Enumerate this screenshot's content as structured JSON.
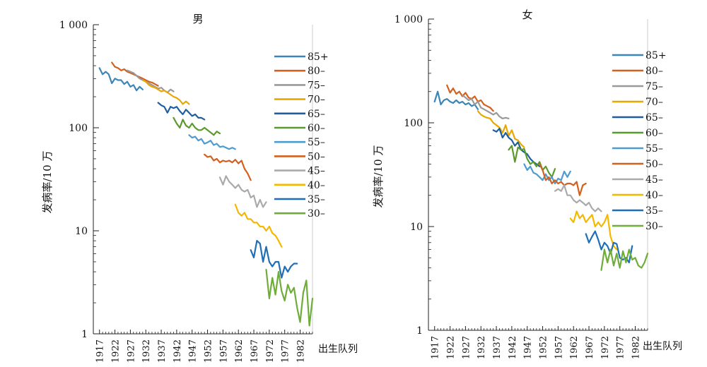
{
  "chart_data": [
    {
      "type": "line",
      "title": "男",
      "ylabel": "发病率/10 万",
      "xlabel": "出生队列",
      "yscale": "log",
      "ylim": [
        1,
        1000
      ],
      "xlim": [
        1915,
        1986
      ],
      "x_ticks": [
        "1917",
        "1922",
        "1927",
        "1932",
        "1937",
        "1942",
        "1947",
        "1952",
        "1957",
        "1962",
        "1967",
        "1972",
        "1977",
        "1982"
      ],
      "y_ticks": [
        {
          "value": 1,
          "label": "1"
        },
        {
          "value": 10,
          "label": "10"
        },
        {
          "value": 100,
          "label": "100"
        },
        {
          "value": 1000,
          "label": "1 000"
        }
      ],
      "legend_position": "right",
      "series": [
        {
          "name": "85+",
          "color": "#3b86b8",
          "x": [
            1917,
            1918,
            1919,
            1920,
            1921,
            1922,
            1923,
            1924,
            1925,
            1926,
            1927,
            1928,
            1929,
            1930,
            1931
          ],
          "values": [
            380,
            330,
            350,
            330,
            270,
            300,
            290,
            290,
            265,
            280,
            250,
            260,
            230,
            250,
            235
          ]
        },
        {
          "name": "80–",
          "color": "#d2611f",
          "x": [
            1921,
            1922,
            1923,
            1924,
            1925,
            1926,
            1927,
            1928,
            1929,
            1930,
            1931,
            1932,
            1933,
            1934,
            1935,
            1936
          ],
          "values": [
            430,
            390,
            380,
            360,
            370,
            350,
            340,
            330,
            320,
            310,
            300,
            290,
            280,
            275,
            265,
            255
          ]
        },
        {
          "name": "75–",
          "color": "#999999",
          "x": [
            1926,
            1927,
            1928,
            1929,
            1930,
            1931,
            1932,
            1933,
            1934,
            1935,
            1936,
            1937,
            1938,
            1939,
            1940,
            1941
          ],
          "values": [
            360,
            350,
            340,
            320,
            300,
            290,
            280,
            270,
            260,
            250,
            240,
            245,
            230,
            220,
            235,
            225
          ]
        },
        {
          "name": "70–",
          "color": "#e8a800",
          "x": [
            1931,
            1932,
            1933,
            1934,
            1935,
            1936,
            1937,
            1938,
            1939,
            1940,
            1941,
            1942,
            1943,
            1944,
            1945,
            1946
          ],
          "values": [
            290,
            280,
            260,
            250,
            245,
            235,
            225,
            230,
            220,
            210,
            200,
            195,
            185,
            170,
            180,
            170
          ]
        },
        {
          "name": "65–",
          "color": "#1f5fa0",
          "x": [
            1936,
            1937,
            1938,
            1939,
            1940,
            1941,
            1942,
            1943,
            1944,
            1945,
            1946,
            1947,
            1948,
            1949,
            1950,
            1951
          ],
          "values": [
            175,
            165,
            160,
            140,
            160,
            155,
            160,
            145,
            135,
            150,
            140,
            130,
            135,
            125,
            125,
            120
          ]
        },
        {
          "name": "60–",
          "color": "#5a9a2a",
          "x": [
            1941,
            1942,
            1943,
            1944,
            1945,
            1946,
            1947,
            1948,
            1949,
            1950,
            1951,
            1952,
            1953,
            1954,
            1955,
            1956
          ],
          "values": [
            125,
            110,
            100,
            120,
            105,
            100,
            110,
            100,
            95,
            95,
            100,
            95,
            90,
            85,
            92,
            88
          ]
        },
        {
          "name": "55–",
          "color": "#4e9bd2",
          "x": [
            1946,
            1947,
            1948,
            1949,
            1950,
            1951,
            1952,
            1953,
            1954,
            1955,
            1956,
            1957,
            1958,
            1959,
            1960,
            1961
          ],
          "values": [
            85,
            80,
            82,
            75,
            78,
            70,
            72,
            75,
            68,
            70,
            65,
            66,
            64,
            62,
            64,
            62
          ]
        },
        {
          "name": "50–",
          "color": "#d2611f",
          "x": [
            1951,
            1952,
            1953,
            1954,
            1955,
            1956,
            1957,
            1958,
            1959,
            1960,
            1961,
            1962,
            1963,
            1964,
            1965,
            1966
          ],
          "values": [
            55,
            52,
            53,
            48,
            50,
            46,
            48,
            47,
            48,
            46,
            49,
            45,
            48,
            40,
            36,
            31
          ]
        },
        {
          "name": "45–",
          "color": "#aaaaaa",
          "x": [
            1956,
            1957,
            1958,
            1959,
            1960,
            1961,
            1962,
            1963,
            1964,
            1965,
            1966,
            1967,
            1968,
            1969,
            1970,
            1971
          ],
          "values": [
            33,
            28,
            34,
            30,
            28,
            26,
            28,
            25,
            24,
            25,
            21,
            22,
            17,
            20,
            17,
            19
          ]
        },
        {
          "name": "40–",
          "color": "#f5b800",
          "x": [
            1961,
            1962,
            1963,
            1964,
            1965,
            1966,
            1967,
            1968,
            1969,
            1970,
            1971,
            1972,
            1973,
            1974,
            1975,
            1976
          ],
          "values": [
            18,
            15,
            14,
            15,
            13,
            13,
            12,
            12,
            11,
            11,
            10,
            11,
            9.5,
            9,
            8,
            7
          ]
        },
        {
          "name": "35–",
          "color": "#1f6fb8",
          "x": [
            1966,
            1967,
            1968,
            1969,
            1970,
            1971,
            1972,
            1973,
            1974,
            1975,
            1976,
            1977,
            1978,
            1979,
            1980,
            1981
          ],
          "values": [
            6.5,
            5.5,
            8,
            7.5,
            5,
            7,
            5,
            4.5,
            5,
            5,
            3.5,
            4.5,
            4,
            4.5,
            4.8,
            4.8
          ]
        },
        {
          "name": "30–",
          "color": "#6fad3a",
          "x": [
            1971,
            1972,
            1973,
            1974,
            1975,
            1976,
            1977,
            1978,
            1979,
            1980,
            1981,
            1982,
            1983,
            1984,
            1985,
            1986
          ],
          "values": [
            4.2,
            2.2,
            3.5,
            2.4,
            4,
            2.6,
            2.1,
            3,
            2.5,
            2.8,
            1.8,
            1.3,
            2.5,
            3.3,
            1.2,
            2.2
          ]
        }
      ]
    },
    {
      "type": "line",
      "title": "女",
      "ylabel": "发病率/10 万",
      "xlabel": "出生队列",
      "yscale": "log",
      "ylim": [
        1,
        1000
      ],
      "xlim": [
        1915,
        1986
      ],
      "x_ticks": [
        "1917",
        "1922",
        "1927",
        "1932",
        "1937",
        "1942",
        "1947",
        "1952",
        "1957",
        "1962",
        "1967",
        "1972",
        "1977",
        "1982"
      ],
      "y_ticks": [
        {
          "value": 1,
          "label": "1"
        },
        {
          "value": 10,
          "label": "10"
        },
        {
          "value": 100,
          "label": "100"
        },
        {
          "value": 1000,
          "label": "1 000"
        }
      ],
      "legend_position": "right",
      "series": [
        {
          "name": "85+",
          "color": "#3b86b8",
          "x": [
            1917,
            1918,
            1919,
            1920,
            1921,
            1922,
            1923,
            1924,
            1925,
            1926,
            1927,
            1928,
            1929,
            1930,
            1931
          ],
          "values": [
            160,
            200,
            150,
            165,
            170,
            160,
            155,
            165,
            155,
            160,
            150,
            155,
            145,
            150,
            135
          ]
        },
        {
          "name": "80–",
          "color": "#d2611f",
          "x": [
            1921,
            1922,
            1923,
            1924,
            1925,
            1926,
            1927,
            1928,
            1929,
            1930,
            1931,
            1932,
            1933,
            1934,
            1935,
            1936
          ],
          "values": [
            230,
            195,
            215,
            190,
            200,
            180,
            195,
            175,
            170,
            180,
            160,
            165,
            150,
            145,
            140,
            130
          ]
        },
        {
          "name": "75–",
          "color": "#999999",
          "x": [
            1926,
            1927,
            1928,
            1929,
            1930,
            1931,
            1932,
            1933,
            1934,
            1935,
            1936,
            1937,
            1938,
            1939,
            1940,
            1941
          ],
          "values": [
            185,
            175,
            165,
            170,
            150,
            160,
            140,
            135,
            130,
            125,
            120,
            125,
            115,
            110,
            112,
            110
          ]
        },
        {
          "name": "70–",
          "color": "#e8a800",
          "x": [
            1931,
            1932,
            1933,
            1934,
            1935,
            1936,
            1937,
            1938,
            1939,
            1940,
            1941,
            1942,
            1943,
            1944,
            1945,
            1946
          ],
          "values": [
            130,
            120,
            115,
            112,
            110,
            100,
            95,
            90,
            80,
            95,
            75,
            85,
            70,
            68,
            62,
            58
          ]
        },
        {
          "name": "65–",
          "color": "#1f5fa0",
          "x": [
            1936,
            1937,
            1938,
            1939,
            1940,
            1941,
            1942,
            1943,
            1944,
            1945,
            1946,
            1947,
            1948,
            1949,
            1950,
            1951
          ],
          "values": [
            85,
            82,
            88,
            72,
            80,
            72,
            68,
            60,
            65,
            55,
            52,
            50,
            45,
            42,
            40,
            38
          ]
        },
        {
          "name": "60–",
          "color": "#5a9a2a",
          "x": [
            1941,
            1942,
            1943,
            1944,
            1945,
            1946,
            1947,
            1948,
            1949,
            1950,
            1951,
            1952,
            1953,
            1954,
            1955,
            1956
          ],
          "values": [
            55,
            60,
            42,
            58,
            55,
            56,
            45,
            40,
            42,
            38,
            42,
            35,
            38,
            33,
            30,
            36
          ]
        },
        {
          "name": "55–",
          "color": "#4e9bd2",
          "x": [
            1946,
            1947,
            1948,
            1949,
            1950,
            1951,
            1952,
            1953,
            1954,
            1955,
            1956,
            1957,
            1958,
            1959,
            1960,
            1961
          ],
          "values": [
            40,
            35,
            38,
            33,
            32,
            30,
            28,
            32,
            28,
            30,
            26,
            29,
            28,
            34,
            30,
            34
          ]
        },
        {
          "name": "50–",
          "color": "#d2611f",
          "x": [
            1951,
            1952,
            1953,
            1954,
            1955,
            1956,
            1957,
            1958,
            1959,
            1960,
            1961,
            1962,
            1963,
            1964,
            1965,
            1966
          ],
          "values": [
            40,
            35,
            28,
            30,
            26,
            28,
            26,
            27,
            25,
            26,
            26,
            25,
            27,
            20,
            25,
            26
          ]
        },
        {
          "name": "45–",
          "color": "#aaaaaa",
          "x": [
            1956,
            1957,
            1958,
            1959,
            1960,
            1961,
            1962,
            1963,
            1964,
            1965,
            1966,
            1967,
            1968,
            1969,
            1970,
            1971
          ],
          "values": [
            22,
            23,
            22,
            25,
            20,
            20,
            18,
            17,
            18,
            17,
            16,
            17,
            15,
            14,
            15,
            14
          ]
        },
        {
          "name": "40–",
          "color": "#f5b800",
          "x": [
            1961,
            1962,
            1963,
            1964,
            1965,
            1966,
            1967,
            1968,
            1969,
            1970,
            1971,
            1972,
            1973,
            1974,
            1975,
            1976
          ],
          "values": [
            12,
            11,
            14,
            12,
            13,
            11,
            12,
            13,
            10,
            11,
            10,
            11,
            13,
            8,
            6.5,
            6
          ]
        },
        {
          "name": "35–",
          "color": "#1f6fb8",
          "x": [
            1966,
            1967,
            1968,
            1969,
            1970,
            1971,
            1972,
            1973,
            1974,
            1975,
            1976,
            1977,
            1978,
            1979,
            1980,
            1981
          ],
          "values": [
            8.5,
            7,
            8,
            9,
            7.5,
            6,
            7,
            6.5,
            5.5,
            7,
            6.8,
            5,
            4.8,
            5,
            4.5,
            6.5
          ]
        },
        {
          "name": "30–",
          "color": "#6fad3a",
          "x": [
            1971,
            1972,
            1973,
            1974,
            1975,
            1976,
            1977,
            1978,
            1979,
            1980,
            1981,
            1982,
            1983,
            1984,
            1985,
            1986
          ],
          "values": [
            3.8,
            6,
            4.5,
            6,
            4.2,
            5.5,
            4,
            5.8,
            4.5,
            6,
            4.8,
            5,
            4.2,
            4,
            4.5,
            5.5
          ]
        }
      ]
    }
  ]
}
